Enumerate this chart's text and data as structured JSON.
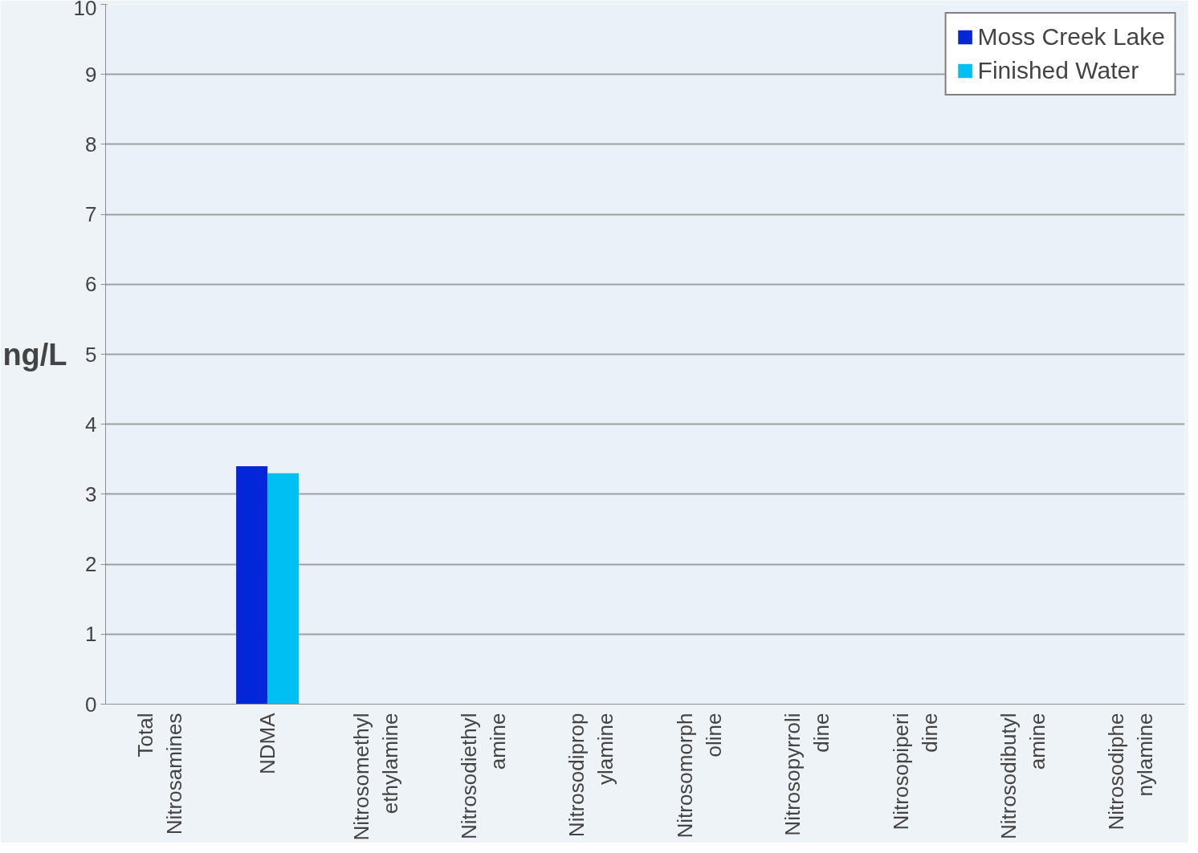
{
  "chart_data": {
    "type": "bar",
    "ylabel": "ng/L",
    "categories": [
      "Total\nNitrosamines",
      "NDMA",
      "Nitrosomethyl\nethylamine",
      "Nitrosodiethyl\namine",
      "Nitrosodiprop\nylamine",
      "Nitrosomorph\noline",
      "Nitrosopyrroli\ndine",
      "Nitrosopiperi\ndine",
      "Nitrosodibutyl\namine",
      "Nitrosodiphe\nnylamine"
    ],
    "series": [
      {
        "name": "Moss Creek Lake",
        "color": "#0327d8",
        "values": [
          null,
          3.4,
          null,
          null,
          null,
          null,
          null,
          null,
          null,
          null
        ]
      },
      {
        "name": "Finished Water",
        "color": "#00bff3",
        "values": [
          null,
          3.3,
          null,
          null,
          null,
          null,
          null,
          null,
          null,
          null
        ]
      }
    ],
    "ylim": [
      0,
      10
    ],
    "yticks": [
      0,
      1,
      2,
      3,
      4,
      5,
      6,
      7,
      8,
      9,
      10
    ],
    "grid": "y",
    "legend": "top right"
  }
}
